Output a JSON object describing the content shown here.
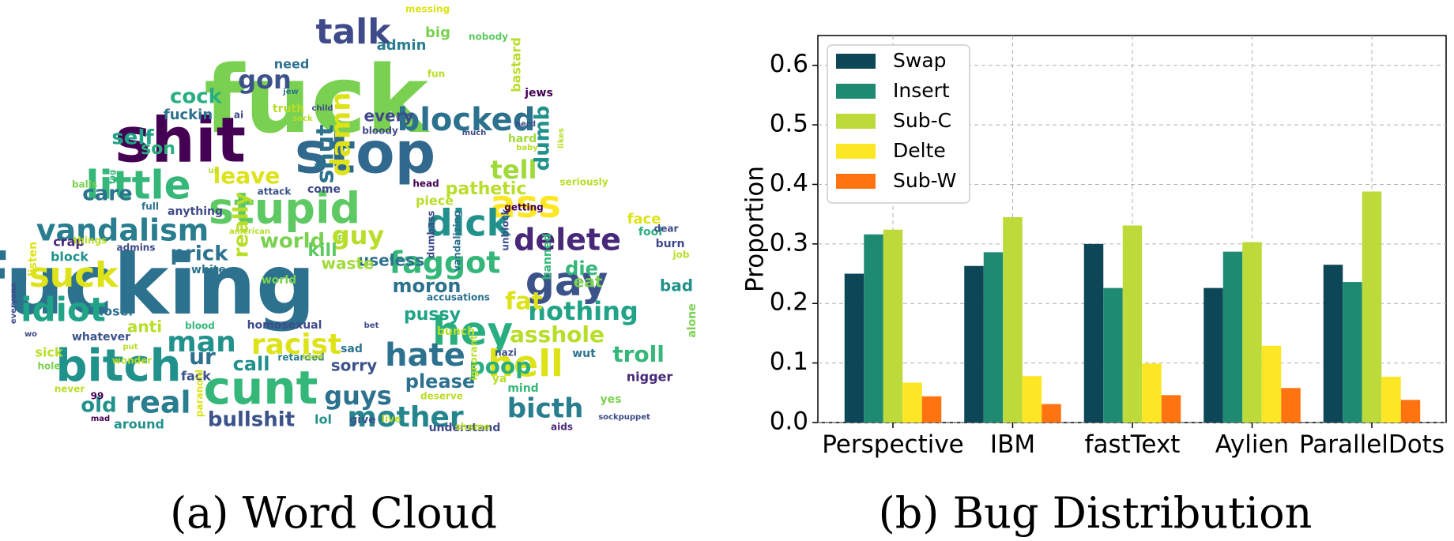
{
  "captions": {
    "left": "(a) Word Cloud",
    "right": "(b) Bug Distribution"
  },
  "word_cloud": {
    "words": [
      {
        "text": "fuck",
        "color": "#7ad151"
      },
      {
        "text": "fucking",
        "color": "#2c728e"
      },
      {
        "text": "shit",
        "color": "#440154"
      },
      {
        "text": "stop",
        "color": "#31688e"
      },
      {
        "text": "talk",
        "color": "#3e4a89"
      },
      {
        "text": "bitch",
        "color": "#21918c"
      },
      {
        "text": "cunt",
        "color": "#35b779"
      },
      {
        "text": "stupid",
        "color": "#5ec962"
      },
      {
        "text": "little",
        "color": "#35b779"
      },
      {
        "text": "ass",
        "color": "#fde725"
      },
      {
        "text": "gay",
        "color": "#3b528b"
      },
      {
        "text": "hey",
        "color": "#29af7f"
      },
      {
        "text": "hell",
        "color": "#dde318"
      },
      {
        "text": "dick",
        "color": "#21918c"
      },
      {
        "text": "vandalism",
        "color": "#287d8e"
      },
      {
        "text": "suck",
        "color": "#dde318"
      },
      {
        "text": "idiot",
        "color": "#20a386"
      },
      {
        "text": "blocked",
        "color": "#2c728e"
      },
      {
        "text": "hate",
        "color": "#2c728e"
      },
      {
        "text": "mother",
        "color": "#25858e"
      },
      {
        "text": "delete",
        "color": "#482878"
      },
      {
        "text": "faggot",
        "color": "#35b779"
      },
      {
        "text": "nothing",
        "color": "#20a386"
      },
      {
        "text": "man",
        "color": "#21918c"
      },
      {
        "text": "racist",
        "color": "#dde318"
      },
      {
        "text": "real",
        "color": "#287d8e"
      },
      {
        "text": "guys",
        "color": "#2c728e"
      },
      {
        "text": "bicth",
        "color": "#287d8e"
      },
      {
        "text": "guy",
        "color": "#b8de29"
      },
      {
        "text": "world",
        "color": "#7ad151"
      },
      {
        "text": "gon",
        "color": "#3b528b"
      },
      {
        "text": "cock",
        "color": "#29af7f"
      },
      {
        "text": "tell",
        "color": "#a0da39"
      },
      {
        "text": "damn",
        "color": "#dde318"
      },
      {
        "text": "shut",
        "color": "#2c728e"
      },
      {
        "text": "leave",
        "color": "#dde318"
      },
      {
        "text": "asshole",
        "color": "#b8de29"
      },
      {
        "text": "fat",
        "color": "#dde318"
      },
      {
        "text": "poop",
        "color": "#29af7f"
      },
      {
        "text": "moron",
        "color": "#2c728e"
      },
      {
        "text": "prick",
        "color": "#2c728e"
      },
      {
        "text": "really",
        "color": "#b8de29"
      },
      {
        "text": "kill",
        "color": "#5ec962"
      },
      {
        "text": "troll",
        "color": "#35b779"
      },
      {
        "text": "bullshit",
        "color": "#3b528b"
      },
      {
        "text": "dumb",
        "color": "#21918c"
      },
      {
        "text": "pathetic",
        "color": "#b8de29"
      },
      {
        "text": "care",
        "color": "#2c728e"
      },
      {
        "text": "self",
        "color": "#20a386"
      },
      {
        "text": "son",
        "color": "#29af7f"
      },
      {
        "text": "ur",
        "color": "#2c728e"
      },
      {
        "text": "call",
        "color": "#21918c"
      },
      {
        "text": "old",
        "color": "#21918c"
      },
      {
        "text": "please",
        "color": "#2c728e"
      },
      {
        "text": "pussy",
        "color": "#20a386"
      },
      {
        "text": "die",
        "color": "#35b779"
      },
      {
        "text": "eat",
        "color": "#7ad151"
      },
      {
        "text": "bad",
        "color": "#21918c"
      },
      {
        "text": "anti",
        "color": "#b8de29"
      },
      {
        "text": "sorry",
        "color": "#3b528b"
      },
      {
        "text": "useless",
        "color": "#2c728e"
      },
      {
        "text": "waste",
        "color": "#a0da39"
      },
      {
        "text": "every",
        "color": "#3e4a89"
      },
      {
        "text": "fuckin",
        "color": "#2c728e"
      },
      {
        "text": "need",
        "color": "#2c728e"
      },
      {
        "text": "admin",
        "color": "#287d8e"
      },
      {
        "text": "big",
        "color": "#7ad151"
      },
      {
        "text": "messing",
        "color": "#dde318"
      },
      {
        "text": "nobody",
        "color": "#5ec962"
      },
      {
        "text": "bastard",
        "color": "#b8de29"
      },
      {
        "text": "jews",
        "color": "#440154"
      },
      {
        "text": "nigger",
        "color": "#482878"
      },
      {
        "text": "alone",
        "color": "#7ad151"
      },
      {
        "text": "face",
        "color": "#dde318"
      },
      {
        "text": "fool",
        "color": "#29af7f"
      },
      {
        "text": "burn",
        "color": "#3e4a89"
      },
      {
        "text": "banned",
        "color": "#35b779"
      },
      {
        "text": "white",
        "color": "#2c728e"
      },
      {
        "text": "world",
        "color": "#7ad151"
      },
      {
        "text": "homosexual",
        "color": "#3e4a89"
      },
      {
        "text": "loser",
        "color": "#2c728e"
      },
      {
        "text": "block",
        "color": "#21918c"
      },
      {
        "text": "crap",
        "color": "#482878"
      },
      {
        "text": "listen",
        "color": "#dde318"
      },
      {
        "text": "sick",
        "color": "#b8de29"
      },
      {
        "text": "whatever",
        "color": "#3b528b"
      },
      {
        "text": "around",
        "color": "#21918c"
      },
      {
        "text": "lol",
        "color": "#21918c"
      },
      {
        "text": "give",
        "color": "#3b528b"
      },
      {
        "text": "understand",
        "color": "#3e4a89"
      },
      {
        "text": "aids",
        "color": "#482878"
      },
      {
        "text": "yes",
        "color": "#7ad151"
      },
      {
        "text": "mind",
        "color": "#35b779"
      },
      {
        "text": "ya",
        "color": "#b8de29"
      },
      {
        "text": "wut",
        "color": "#2c728e"
      },
      {
        "text": "bunch",
        "color": "#b8de29"
      },
      {
        "text": "fack",
        "color": "#3b528b"
      },
      {
        "text": "retarded",
        "color": "#287d8e"
      },
      {
        "text": "sad",
        "color": "#2c728e"
      },
      {
        "text": "accusations",
        "color": "#2c728e"
      },
      {
        "text": "vandalizing",
        "color": "#2c728e"
      },
      {
        "text": "piece",
        "color": "#b8de29"
      },
      {
        "text": "come",
        "color": "#3e4a89"
      },
      {
        "text": "anything",
        "color": "#3e4a89"
      },
      {
        "text": "attack",
        "color": "#3b528b"
      },
      {
        "text": "truth",
        "color": "#b8de29"
      },
      {
        "text": "hard",
        "color": "#a0da39"
      },
      {
        "text": "seriously",
        "color": "#b8de29"
      },
      {
        "text": "head",
        "color": "#440154"
      },
      {
        "text": "99",
        "color": "#440154"
      },
      {
        "text": "mad",
        "color": "#440154"
      },
      {
        "text": "hole",
        "color": "#7ad151"
      },
      {
        "text": "never",
        "color": "#b8de29"
      },
      {
        "text": "wonder",
        "color": "#b8de29"
      },
      {
        "text": "everyone",
        "color": "#3e4a89"
      },
      {
        "text": "blood",
        "color": "#35b779"
      },
      {
        "text": "paranoid",
        "color": "#dde318"
      },
      {
        "text": "live",
        "color": "#b8de29"
      },
      {
        "text": "deserve",
        "color": "#b8de29"
      },
      {
        "text": "shame",
        "color": "#b8de29"
      },
      {
        "text": "sockpuppet",
        "color": "#3e4a89"
      },
      {
        "text": "blow",
        "color": "#b8de29"
      },
      {
        "text": "nazi",
        "color": "#3e4a89"
      },
      {
        "text": "ignorant",
        "color": "#b8de29"
      },
      {
        "text": "unblock",
        "color": "#3b528b"
      },
      {
        "text": "dumbass",
        "color": "#3e4a89"
      },
      {
        "text": "getting",
        "color": "#440154"
      },
      {
        "text": "dear",
        "color": "#3e4a89"
      },
      {
        "text": "job",
        "color": "#b8de29"
      },
      {
        "text": "admins",
        "color": "#3e4a89"
      },
      {
        "text": "things",
        "color": "#b8de29"
      },
      {
        "text": "full",
        "color": "#2c728e"
      },
      {
        "text": "balls",
        "color": "#7ad151"
      },
      {
        "text": "fag",
        "color": "#35b779"
      },
      {
        "text": "us",
        "color": "#b8de29"
      },
      {
        "text": "ai",
        "color": "#3e4a89"
      },
      {
        "text": "jew",
        "color": "#2c728e"
      },
      {
        "text": "sock",
        "color": "#b8de29"
      },
      {
        "text": "child",
        "color": "#3e4a89"
      },
      {
        "text": "bloody",
        "color": "#3e4a89"
      },
      {
        "text": "much",
        "color": "#3e4a89"
      },
      {
        "text": "baby",
        "color": "#b8de29"
      },
      {
        "text": "nerd",
        "color": "#3e4a89"
      },
      {
        "text": "likes",
        "color": "#b8de29"
      },
      {
        "text": "fun",
        "color": "#b8de29"
      },
      {
        "text": "american",
        "color": "#b8de29"
      },
      {
        "text": "put",
        "color": "#b8de29"
      },
      {
        "text": "bet",
        "color": "#3e4a89"
      },
      {
        "text": "wo",
        "color": "#3e4a89"
      },
      {
        "text": "ip",
        "color": "#b8de29"
      },
      {
        "text": "r",
        "color": "#7ad151"
      }
    ]
  },
  "chart_data": {
    "type": "bar",
    "categories": [
      "Perspective",
      "IBM",
      "fastText",
      "Aylien",
      "ParallelDots"
    ],
    "series": [
      {
        "name": "Swap",
        "color": "#0d4656",
        "values": [
          0.25,
          0.263,
          0.3,
          0.226,
          0.265
        ]
      },
      {
        "name": "Insert",
        "color": "#1f8a72",
        "values": [
          0.316,
          0.286,
          0.226,
          0.287,
          0.236
        ]
      },
      {
        "name": "Sub-C",
        "color": "#bcdb3a",
        "values": [
          0.324,
          0.345,
          0.331,
          0.303,
          0.388
        ]
      },
      {
        "name": "Delte",
        "color": "#fde725",
        "values": [
          0.067,
          0.078,
          0.099,
          0.129,
          0.077
        ]
      },
      {
        "name": "Sub-W",
        "color": "#ff7410",
        "values": [
          0.044,
          0.031,
          0.046,
          0.058,
          0.038
        ]
      }
    ],
    "title": "",
    "xlabel": "",
    "ylabel": "Proportion",
    "ylim": [
      0.0,
      0.65
    ],
    "yticks": [
      "0.0",
      "0.1",
      "0.2",
      "0.3",
      "0.4",
      "0.5",
      "0.6"
    ],
    "grid": true,
    "legend_position": "top-left"
  }
}
